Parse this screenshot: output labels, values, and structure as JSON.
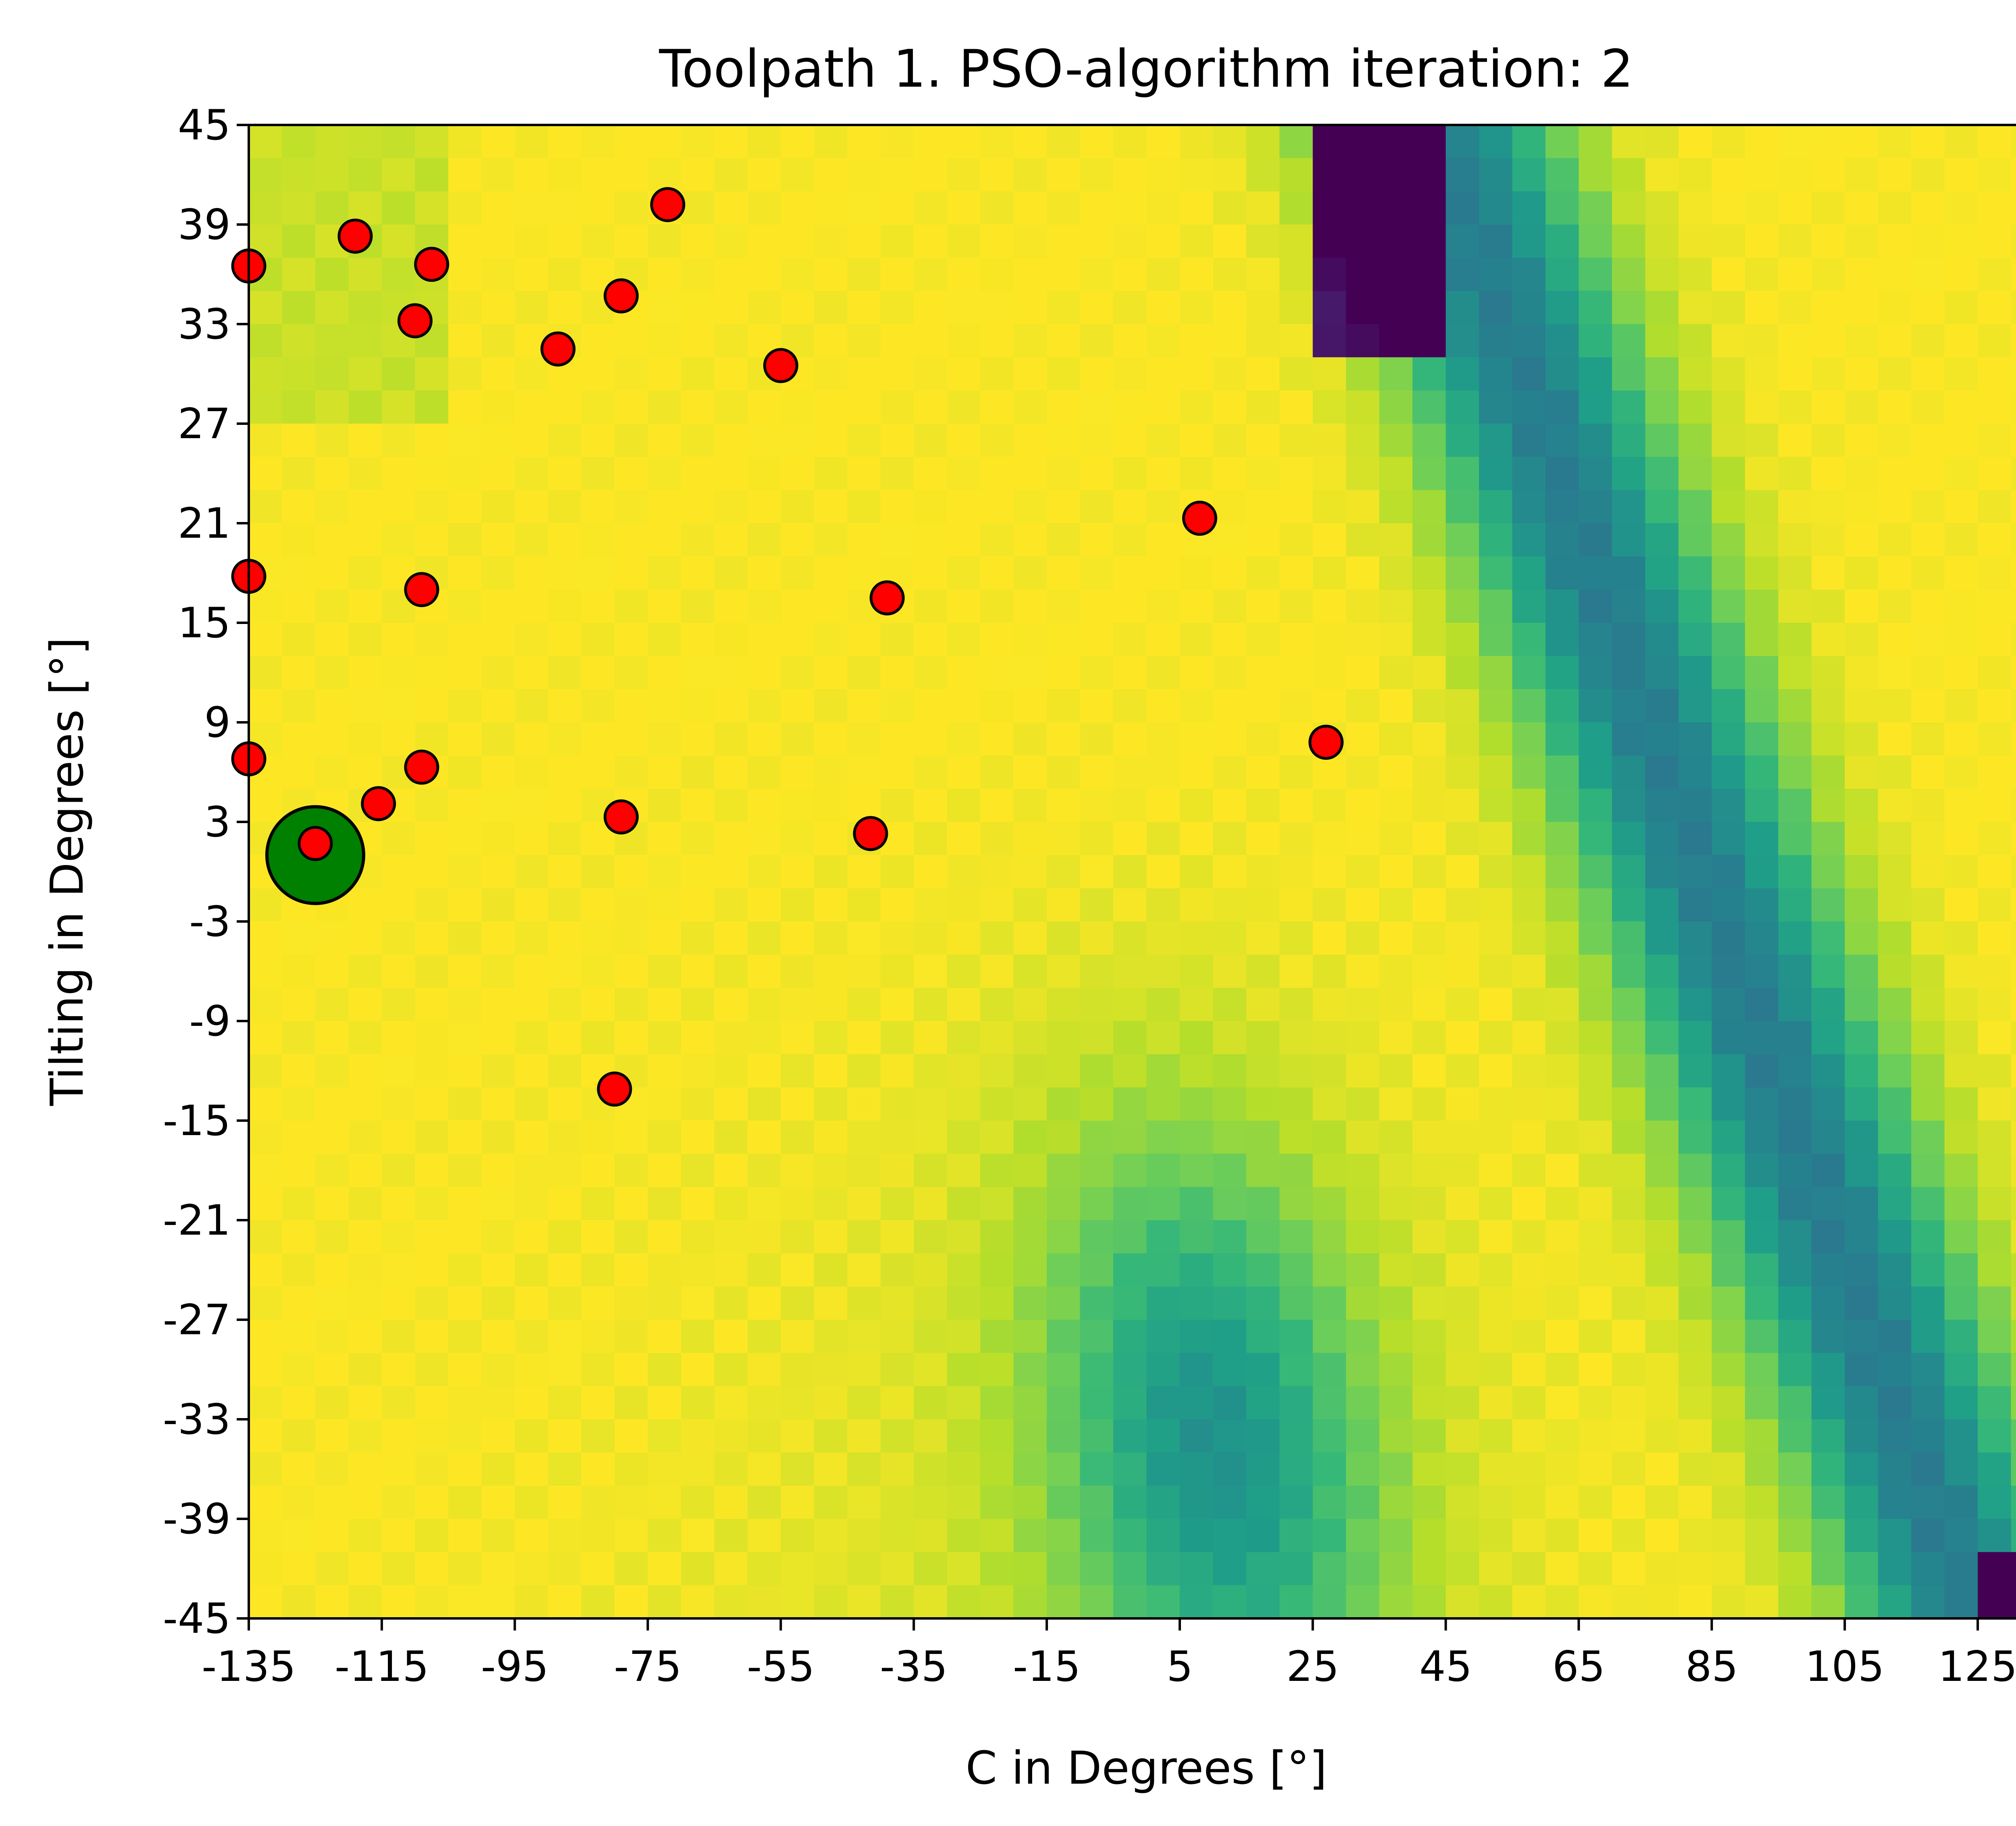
{
  "chart_data": {
    "type": "heatmap",
    "title": "Toolpath 1. PSO-algorithm iteration: 2",
    "xlabel": "C in Degrees [°]",
    "ylabel": "Tilting in Degrees [°]",
    "xlim": [
      -135,
      135
    ],
    "ylim": [
      -45,
      45
    ],
    "x_ticks": [
      "-135",
      "-115",
      "-95",
      "-75",
      "-55",
      "-35",
      "-15",
      "5",
      "25",
      "45",
      "65",
      "85",
      "105",
      "125"
    ],
    "x_tick_values": [
      -135,
      -115,
      -95,
      -75,
      -55,
      -35,
      -15,
      5,
      25,
      45,
      65,
      85,
      105,
      125
    ],
    "y_ticks": [
      "45",
      "39",
      "33",
      "27",
      "21",
      "15",
      "9",
      "3",
      "-3",
      "-9",
      "-15",
      "-21",
      "-27",
      "-33",
      "-39",
      "-45"
    ],
    "y_tick_values": [
      45,
      39,
      33,
      27,
      21,
      15,
      9,
      3,
      -3,
      -9,
      -15,
      -21,
      -27,
      -33,
      -39,
      -45
    ],
    "heatmap": {
      "colormap": "viridis",
      "grid_c": [
        54,
        45
      ],
      "description_of_field": "high (yellow) over most of left region, low-value valley (teal/green) running diagonally from top center (C≈45, tilt 45) to bottom right (C≈135, tilt -45), plus a secondary green band from lower-left-center toward the bottom center",
      "value_range": [
        0.0,
        1.0
      ]
    },
    "particles": [
      {
        "c": -135,
        "tilt": 36.5
      },
      {
        "c": -119,
        "tilt": 38.3
      },
      {
        "c": -107.5,
        "tilt": 36.6
      },
      {
        "c": -110,
        "tilt": 33.2
      },
      {
        "c": -88.5,
        "tilt": 31.5
      },
      {
        "c": -79,
        "tilt": 34.7
      },
      {
        "c": -72,
        "tilt": 40.2
      },
      {
        "c": -55,
        "tilt": 30.5
      },
      {
        "c": 8,
        "tilt": 21.3
      },
      {
        "c": -135,
        "tilt": 17.8
      },
      {
        "c": -109,
        "tilt": 17.0
      },
      {
        "c": -39,
        "tilt": 16.5
      },
      {
        "c": 27,
        "tilt": 7.8
      },
      {
        "c": -135,
        "tilt": 6.8
      },
      {
        "c": -109,
        "tilt": 6.3
      },
      {
        "c": -115.5,
        "tilt": 4.1
      },
      {
        "c": -79,
        "tilt": 3.3
      },
      {
        "c": -41.5,
        "tilt": 2.3
      },
      {
        "c": -125,
        "tilt": 1.7
      },
      {
        "c": -80,
        "tilt": -13.1
      }
    ],
    "global_best": {
      "c": -125,
      "tilt": 1.0
    },
    "particle_color": "#ff0000",
    "best_color": "#008000",
    "edge_color": "#000000"
  }
}
